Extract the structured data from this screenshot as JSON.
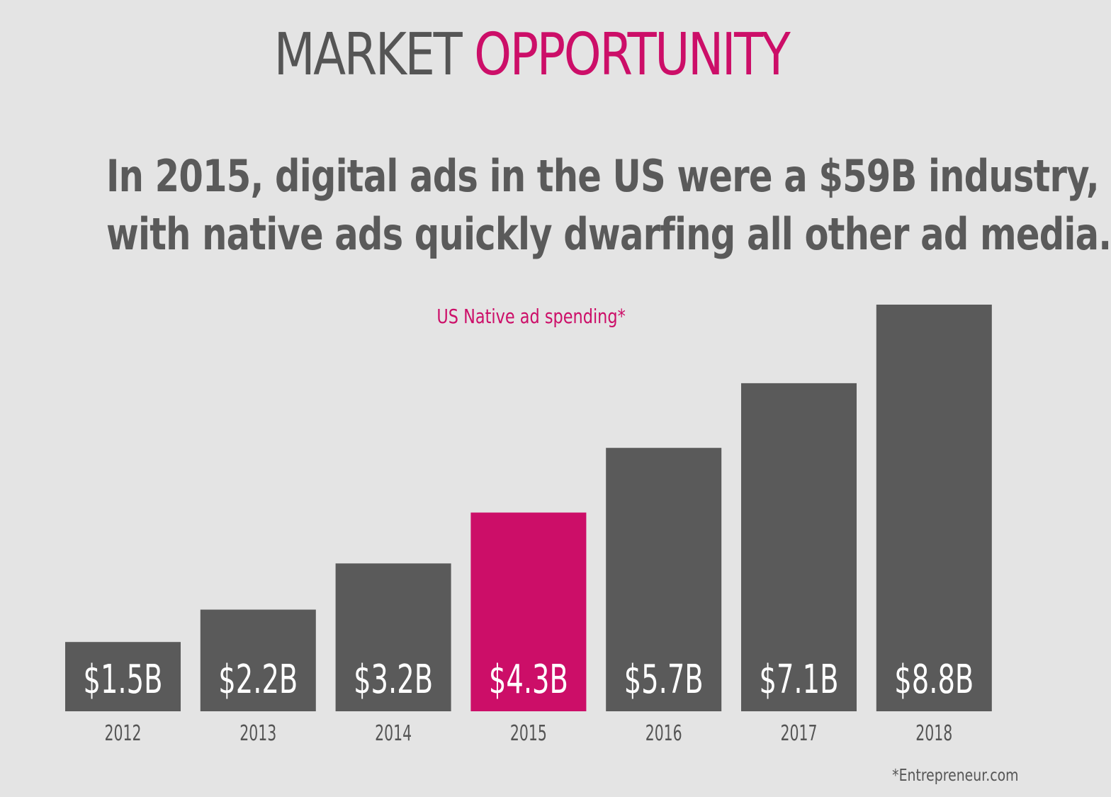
{
  "header": {
    "title_part1": "MARKET",
    "title_part2": "OPPORTUNITY",
    "subtitle_line1": "In 2015, digital ads in the US were a $59B industry,",
    "subtitle_line2": "with native ads quickly dwarfing all other ad media."
  },
  "footer": {
    "source": "*Entrepreneur.com"
  },
  "colors": {
    "background": "#e4e4e4",
    "bar": "#5a5a5a",
    "highlight": "#cc0e68",
    "text": "#555555"
  },
  "chart_data": {
    "type": "bar",
    "title": "US Native ad spending*",
    "categories": [
      "2012",
      "2013",
      "2014",
      "2015",
      "2016",
      "2017",
      "2018"
    ],
    "values": [
      1.5,
      2.2,
      3.2,
      4.3,
      5.7,
      7.1,
      8.8
    ],
    "labels": [
      "$1.5B",
      "$2.2B",
      "$3.2B",
      "$4.3B",
      "$5.7B",
      "$7.1B",
      "$8.8B"
    ],
    "highlight_category": "2015",
    "xlabel": "",
    "ylabel": "",
    "ylim": [
      0,
      8.8
    ],
    "grid": false
  }
}
